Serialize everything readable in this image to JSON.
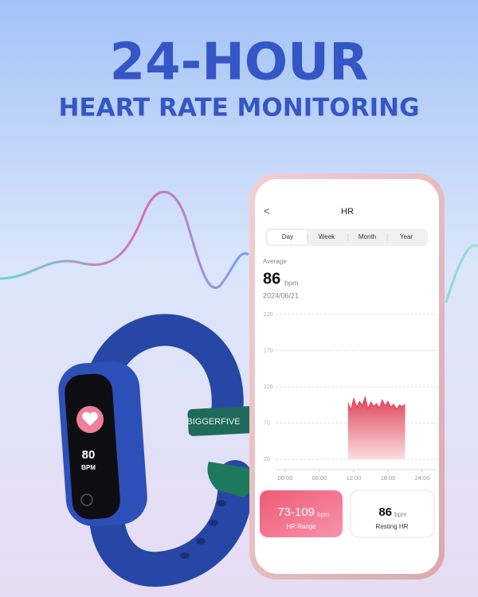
{
  "header": {
    "title": "24-HOUR",
    "subtitle": "HEART RATE MONITORING"
  },
  "band": {
    "brand": "BIGGERFIVE",
    "screen_value": "80",
    "screen_unit": "BPM"
  },
  "phone": {
    "back": "<",
    "title": "HR",
    "tabs": [
      "Day",
      "Week",
      "Month",
      "Year"
    ],
    "average_label": "Average",
    "average_value": "86",
    "average_unit": "bpm",
    "date": "2024/06/21",
    "hr_chart": {
      "type": "area",
      "ylim": [
        20,
        220
      ],
      "yticks": [
        220,
        170,
        120,
        70,
        20
      ],
      "xlim": [
        0,
        24
      ],
      "xticks": [
        {
          "value": 0,
          "label": "00:00"
        },
        {
          "value": 6,
          "label": "06:00"
        },
        {
          "value": 12,
          "label": "12:00"
        },
        {
          "value": 18,
          "label": "18:00"
        },
        {
          "value": 24,
          "label": "24:00"
        }
      ],
      "x": [
        11,
        11.5,
        12,
        12.5,
        13,
        13.5,
        14,
        14.5,
        15,
        15.5,
        16,
        16.5,
        17,
        17.5,
        18,
        18.5,
        19,
        19.5,
        20,
        20.5,
        21
      ],
      "values": [
        98,
        88,
        104,
        92,
        100,
        95,
        106,
        90,
        99,
        93,
        97,
        91,
        102,
        94,
        100,
        92,
        96,
        89,
        95,
        93,
        96
      ],
      "color": "#e04558"
    },
    "cards": [
      {
        "value": "73-109",
        "unit": "bpm",
        "label": "HR Range"
      },
      {
        "value": "86",
        "unit": "bpm",
        "label": "Resting HR"
      }
    ]
  }
}
